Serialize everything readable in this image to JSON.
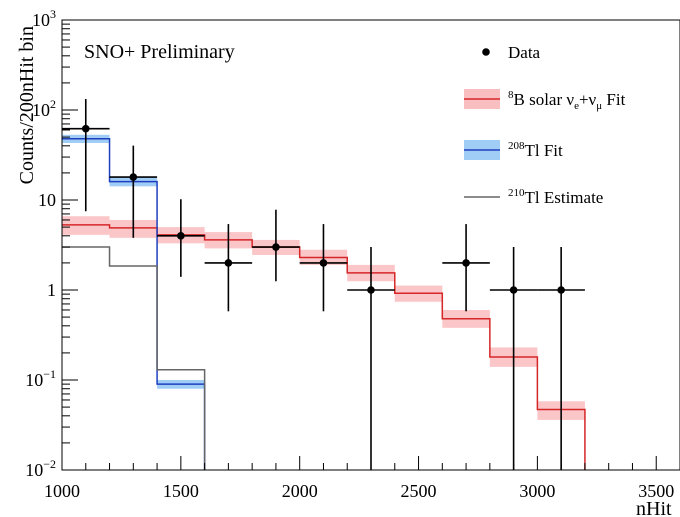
{
  "chart_data": {
    "type": "histogram",
    "title": "SNO+ Preliminary",
    "xlabel": "nHit",
    "ylabel": "Counts/200nHit bin",
    "xlim": [
      1000,
      3600
    ],
    "ylim": [
      0.01,
      1000
    ],
    "yscale": "log",
    "legend_placement": "top-right",
    "x_ticks": [
      {
        "value": 1000,
        "label": "1000"
      },
      {
        "value": 1500,
        "label": "1500"
      },
      {
        "value": 2000,
        "label": "2000"
      },
      {
        "value": 2500,
        "label": "2500"
      },
      {
        "value": 3000,
        "label": "3000"
      },
      {
        "value": 3500,
        "label": "3500"
      }
    ],
    "y_ticks": [
      {
        "value": 0.01,
        "base": "10",
        "exp": "−2"
      },
      {
        "value": 0.1,
        "base": "10",
        "exp": "−1"
      },
      {
        "value": 1,
        "base": "1",
        "exp": ""
      },
      {
        "value": 10,
        "base": "10",
        "exp": ""
      },
      {
        "value": 100,
        "base": "10",
        "exp": "2"
      },
      {
        "value": 1000,
        "base": "10",
        "exp": "3"
      }
    ],
    "bin_edges": [
      1000,
      1200,
      1400,
      1600,
      1800,
      2000,
      2200,
      2400,
      2600,
      2800,
      3000,
      3200
    ],
    "series": [
      {
        "key": "b8",
        "legend_label": "⁸B solar νe+νμ Fit",
        "color": "#d62728",
        "band_color": "#f7a8ab",
        "values": [
          5.3,
          4.9,
          4.1,
          3.6,
          3.0,
          2.3,
          1.55,
          0.92,
          0.48,
          0.18,
          0.047
        ],
        "band_lower": [
          4.1,
          3.8,
          3.3,
          2.9,
          2.45,
          1.9,
          1.25,
          0.74,
          0.38,
          0.14,
          0.036
        ],
        "band_upper": [
          6.6,
          6.0,
          5.0,
          4.4,
          3.6,
          2.8,
          1.9,
          1.12,
          0.6,
          0.23,
          0.058
        ]
      },
      {
        "key": "tl208",
        "legend_label": "²⁰⁸Tl Fit",
        "color": "#1f3fbf",
        "band_color": "#8fc4f4",
        "values": [
          48,
          16,
          0.09
        ],
        "band_lower": [
          43,
          14.2,
          0.08
        ],
        "band_upper": [
          53,
          18,
          0.1
        ]
      },
      {
        "key": "tl210",
        "legend_label": "²¹⁰Tl Estimate",
        "color": "#666666",
        "values": [
          3.0,
          1.85,
          0.13
        ]
      }
    ],
    "data_points": {
      "legend_label": "Data",
      "x": [
        1100,
        1300,
        1500,
        1700,
        1900,
        2100,
        2300,
        2700,
        2900,
        3100
      ],
      "y": [
        62,
        18,
        4,
        2,
        3,
        2,
        1,
        2,
        1,
        1
      ],
      "yerr_low": [
        54.5,
        14.2,
        2.6,
        1.42,
        1.75,
        1.42,
        0.99,
        1.42,
        0.99,
        0.99
      ],
      "yerr_high": [
        70.5,
        22.2,
        6.2,
        3.4,
        4.8,
        3.4,
        2.0,
        3.4,
        2.0,
        2.0
      ]
    }
  }
}
